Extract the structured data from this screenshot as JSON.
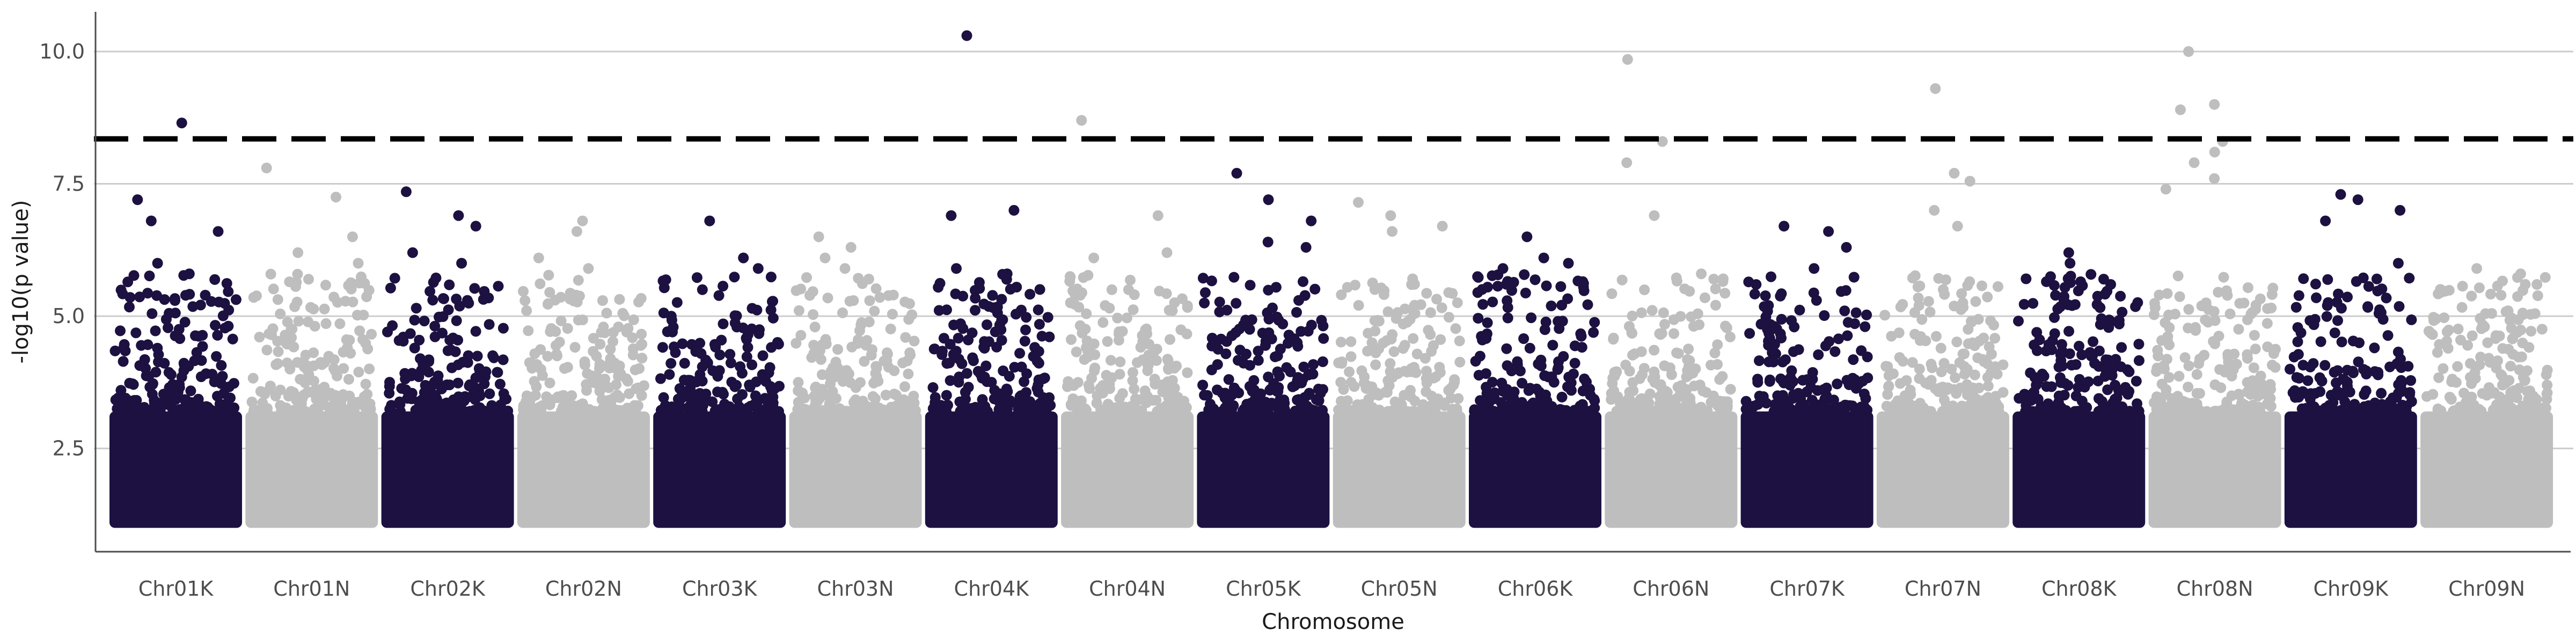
{
  "chart_data": {
    "type": "scatter",
    "title": "",
    "xlabel": "Chromosome",
    "ylabel": "-log10(p value)",
    "ylim": [
      0.55,
      10.75
    ],
    "yticks": [
      2.5,
      5.0,
      7.5,
      10.0
    ],
    "ytick_labels": [
      "2.5",
      "5.0",
      "7.5",
      "10.0"
    ],
    "grid": "horizontal major",
    "legend": "none",
    "threshold": 8.35,
    "colors": {
      "odd": "#1c1140",
      "even": "#bebebe",
      "threshold": "#000000",
      "grid": "#cccccc",
      "axis": "#4d4d4d"
    },
    "chromosomes": [
      {
        "label": "Chr01K",
        "top_hits": [
          6.8,
          8.65,
          7.2,
          6.0,
          5.8,
          6.6
        ]
      },
      {
        "label": "Chr01N",
        "top_hits": [
          7.8,
          7.25,
          6.5,
          6.2,
          6.0
        ]
      },
      {
        "label": "Chr02K",
        "top_hits": [
          7.35,
          6.9,
          6.7,
          6.2,
          6.0
        ]
      },
      {
        "label": "Chr02N",
        "top_hits": [
          6.8,
          6.6,
          6.1,
          5.9
        ]
      },
      {
        "label": "Chr03K",
        "top_hits": [
          6.8,
          6.1,
          5.9,
          5.5
        ]
      },
      {
        "label": "Chr03N",
        "top_hits": [
          6.5,
          6.3,
          6.1,
          5.9
        ]
      },
      {
        "label": "Chr04K",
        "top_hits": [
          10.3,
          7.0,
          6.9,
          5.9,
          5.8
        ]
      },
      {
        "label": "Chr04N",
        "top_hits": [
          8.7,
          6.9,
          6.2,
          6.1
        ]
      },
      {
        "label": "Chr05K",
        "top_hits": [
          7.7,
          7.2,
          6.8,
          6.4,
          6.3
        ]
      },
      {
        "label": "Chr05N",
        "top_hits": [
          7.15,
          6.9,
          6.7,
          6.6
        ]
      },
      {
        "label": "Chr06K",
        "top_hits": [
          6.5,
          6.1,
          6.0,
          5.9
        ]
      },
      {
        "label": "Chr06N",
        "top_hits": [
          9.85,
          8.3,
          7.9,
          6.9,
          5.8
        ]
      },
      {
        "label": "Chr07K",
        "top_hits": [
          6.7,
          6.6,
          6.3,
          5.9
        ]
      },
      {
        "label": "Chr07N",
        "top_hits": [
          9.3,
          7.7,
          7.55,
          7.0,
          6.7
        ]
      },
      {
        "label": "Chr08K",
        "top_hits": [
          6.2,
          6.0,
          5.7
        ]
      },
      {
        "label": "Chr08N",
        "top_hits": [
          10.0,
          9.0,
          8.9,
          8.3,
          8.1,
          7.9,
          7.6,
          7.4
        ]
      },
      {
        "label": "Chr09K",
        "top_hits": [
          7.3,
          7.2,
          7.0,
          6.8,
          6.0
        ]
      },
      {
        "label": "Chr09N",
        "top_hits": [
          5.9,
          5.8,
          5.6
        ]
      }
    ]
  }
}
